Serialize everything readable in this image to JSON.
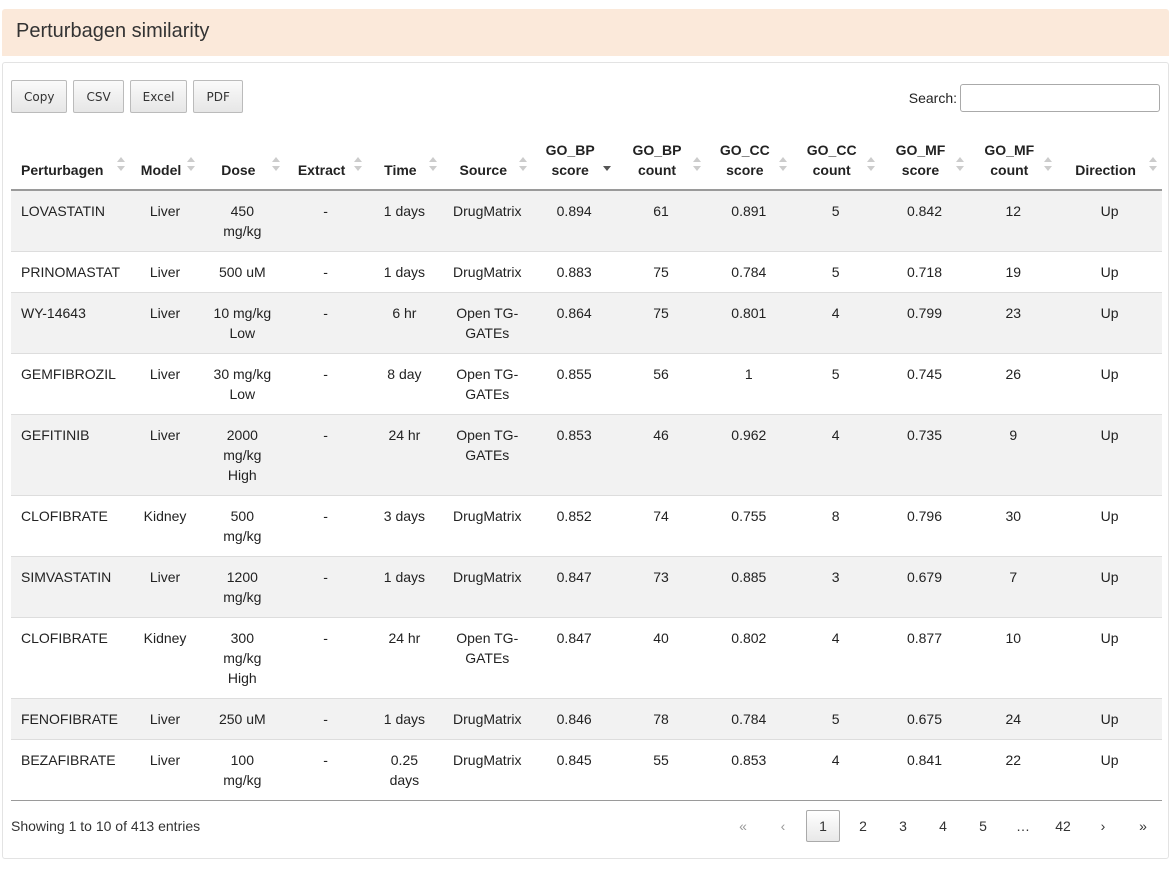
{
  "panel_title": "Perturbagen similarity",
  "export_buttons": [
    "Copy",
    "CSV",
    "Excel",
    "PDF"
  ],
  "search": {
    "label": "Search:",
    "value": ""
  },
  "columns": [
    "Perturbagen",
    "Model",
    "Dose",
    "Extract",
    "Time",
    "Source",
    "GO_BP score",
    "GO_BP count",
    "GO_CC score",
    "GO_CC count",
    "GO_MF score",
    "GO_MF count",
    "Direction"
  ],
  "sorted_column": "GO_BP score",
  "sort_direction": "descending",
  "rows": [
    [
      "LOVASTATIN",
      "Liver",
      "450 mg/kg",
      "-",
      "1 days",
      "DrugMatrix",
      "0.894",
      "61",
      "0.891",
      "5",
      "0.842",
      "12",
      "Up"
    ],
    [
      "PRINOMASTAT",
      "Liver",
      "500 uM",
      "-",
      "1 days",
      "DrugMatrix",
      "0.883",
      "75",
      "0.784",
      "5",
      "0.718",
      "19",
      "Up"
    ],
    [
      "WY-14643",
      "Liver",
      "10 mg/kg Low",
      "-",
      "6 hr",
      "Open TG-GATEs",
      "0.864",
      "75",
      "0.801",
      "4",
      "0.799",
      "23",
      "Up"
    ],
    [
      "GEMFIBROZIL",
      "Liver",
      "30 mg/kg Low",
      "-",
      "8 day",
      "Open TG-GATEs",
      "0.855",
      "56",
      "1",
      "5",
      "0.745",
      "26",
      "Up"
    ],
    [
      "GEFITINIB",
      "Liver",
      "2000 mg/kg High",
      "-",
      "24 hr",
      "Open TG-GATEs",
      "0.853",
      "46",
      "0.962",
      "4",
      "0.735",
      "9",
      "Up"
    ],
    [
      "CLOFIBRATE",
      "Kidney",
      "500 mg/kg",
      "-",
      "3 days",
      "DrugMatrix",
      "0.852",
      "74",
      "0.755",
      "8",
      "0.796",
      "30",
      "Up"
    ],
    [
      "SIMVASTATIN",
      "Liver",
      "1200 mg/kg",
      "-",
      "1 days",
      "DrugMatrix",
      "0.847",
      "73",
      "0.885",
      "3",
      "0.679",
      "7",
      "Up"
    ],
    [
      "CLOFIBRATE",
      "Kidney",
      "300 mg/kg High",
      "-",
      "24 hr",
      "Open TG-GATEs",
      "0.847",
      "40",
      "0.802",
      "4",
      "0.877",
      "10",
      "Up"
    ],
    [
      "FENOFIBRATE",
      "Liver",
      "250 uM",
      "-",
      "1 days",
      "DrugMatrix",
      "0.846",
      "78",
      "0.784",
      "5",
      "0.675",
      "24",
      "Up"
    ],
    [
      "BEZAFIBRATE",
      "Liver",
      "100 mg/kg",
      "-",
      "0.25 days",
      "DrugMatrix",
      "0.845",
      "55",
      "0.853",
      "4",
      "0.841",
      "22",
      "Up"
    ]
  ],
  "info_text": "Showing 1 to 10 of 413 entries",
  "pagination": {
    "first": "«",
    "prev": "‹",
    "pages": [
      "1",
      "2",
      "3",
      "4",
      "5",
      "…",
      "42"
    ],
    "current": "1",
    "next": "›",
    "last": "»"
  }
}
